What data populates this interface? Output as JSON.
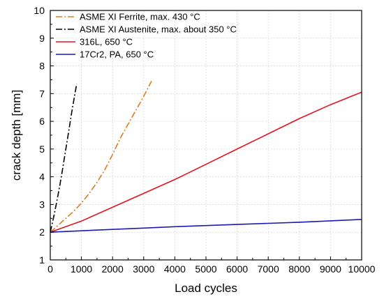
{
  "chart_data": {
    "type": "line",
    "title": "",
    "xlabel": "Load cycles",
    "ylabel": "crack depth [mm]",
    "xlim": [
      0,
      10000
    ],
    "ylim": [
      1,
      10
    ],
    "x_ticks": [
      0,
      1000,
      2000,
      3000,
      4000,
      5000,
      6000,
      7000,
      8000,
      9000,
      10000
    ],
    "y_ticks": [
      1,
      2,
      3,
      4,
      5,
      6,
      7,
      8,
      9,
      10
    ],
    "grid": true,
    "legend_position": "top-left",
    "series": [
      {
        "name": "ASME XI Ferrite, max. 430 °C",
        "color": "#E07B1B",
        "dash": "dash-dot",
        "x": [
          0,
          250,
          500,
          750,
          1000,
          1250,
          1500,
          1750,
          2000,
          2250,
          2500,
          2750,
          3000,
          3250
        ],
        "y": [
          2.0,
          2.25,
          2.5,
          2.75,
          3.05,
          3.4,
          3.8,
          4.25,
          4.8,
          5.4,
          5.9,
          6.4,
          6.9,
          7.45
        ]
      },
      {
        "name": "ASME XI Austenite, max. about 350 °C",
        "color": "#000000",
        "dash": "dash-dot",
        "x": [
          0,
          100,
          200,
          300,
          400,
          500,
          600,
          700,
          800,
          850
        ],
        "y": [
          2.0,
          2.5,
          3.05,
          3.65,
          4.3,
          5.0,
          5.7,
          6.4,
          7.05,
          7.35
        ]
      },
      {
        "name": "316L, 650 °C",
        "color": "#E3141B",
        "dash": "solid",
        "x": [
          0,
          1000,
          2000,
          3000,
          4000,
          5000,
          6000,
          7000,
          8000,
          9000,
          10000
        ],
        "y": [
          2.0,
          2.4,
          2.9,
          3.4,
          3.9,
          4.45,
          5.0,
          5.55,
          6.1,
          6.6,
          7.05
        ]
      },
      {
        "name": "17Cr2, PA, 650 °C",
        "color": "#1A1AB5",
        "dash": "solid",
        "x": [
          0,
          1000,
          2000,
          3000,
          4000,
          5000,
          6000,
          7000,
          8000,
          9000,
          10000
        ],
        "y": [
          2.0,
          2.05,
          2.1,
          2.15,
          2.2,
          2.24,
          2.28,
          2.32,
          2.36,
          2.41,
          2.46
        ]
      }
    ]
  }
}
